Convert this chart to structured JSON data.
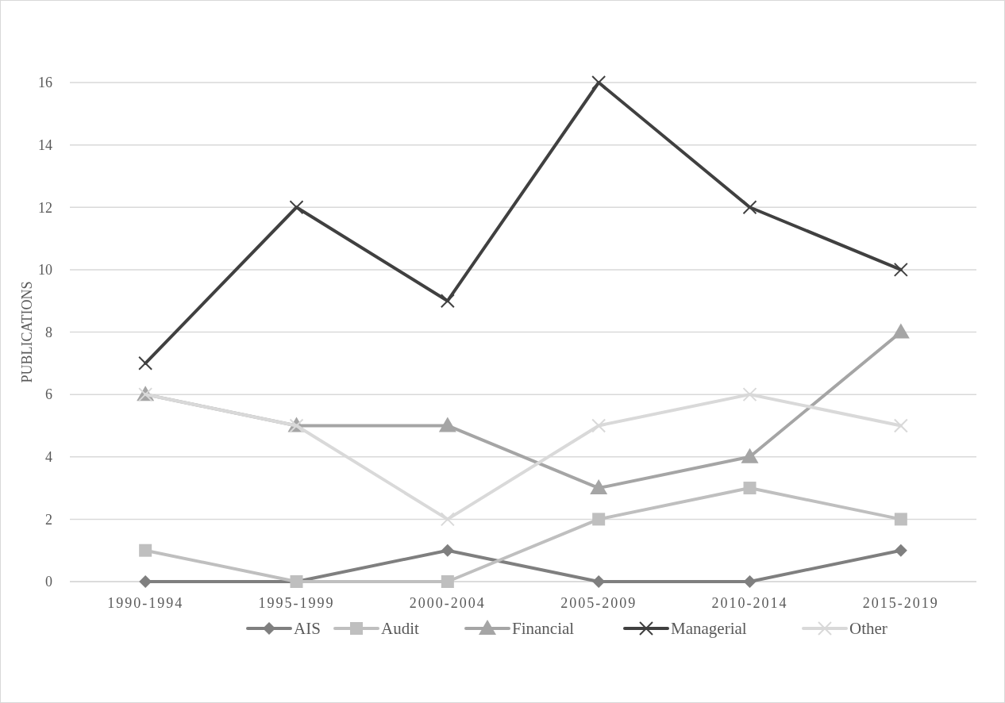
{
  "chart_data": {
    "type": "line",
    "ylabel": "PUBLICATIONS",
    "categories": [
      "1990-1994",
      "1995-1999",
      "2000-2004",
      "2005-2009",
      "2010-2014",
      "2015-2019"
    ],
    "ylim": [
      0,
      16
    ],
    "yticks": [
      0,
      2,
      4,
      6,
      8,
      10,
      12,
      14,
      16
    ],
    "grid": "y",
    "legend": "bottom",
    "series": [
      {
        "name": "AIS",
        "color": "#7f7f7f",
        "marker": "diamond",
        "values": [
          0,
          0,
          1,
          0,
          0,
          1
        ]
      },
      {
        "name": "Audit",
        "color": "#bfbfbf",
        "marker": "square",
        "values": [
          1,
          0,
          0,
          2,
          3,
          2
        ]
      },
      {
        "name": "Financial",
        "color": "#a5a5a5",
        "marker": "triangle",
        "values": [
          6,
          5,
          5,
          3,
          4,
          8
        ]
      },
      {
        "name": "Managerial",
        "color": "#404040",
        "marker": "cross",
        "values": [
          7,
          12,
          9,
          16,
          12,
          10
        ]
      },
      {
        "name": "Other",
        "color": "#d9d9d9",
        "marker": "cross",
        "values": [
          6,
          5,
          2,
          5,
          6,
          5
        ]
      }
    ]
  }
}
